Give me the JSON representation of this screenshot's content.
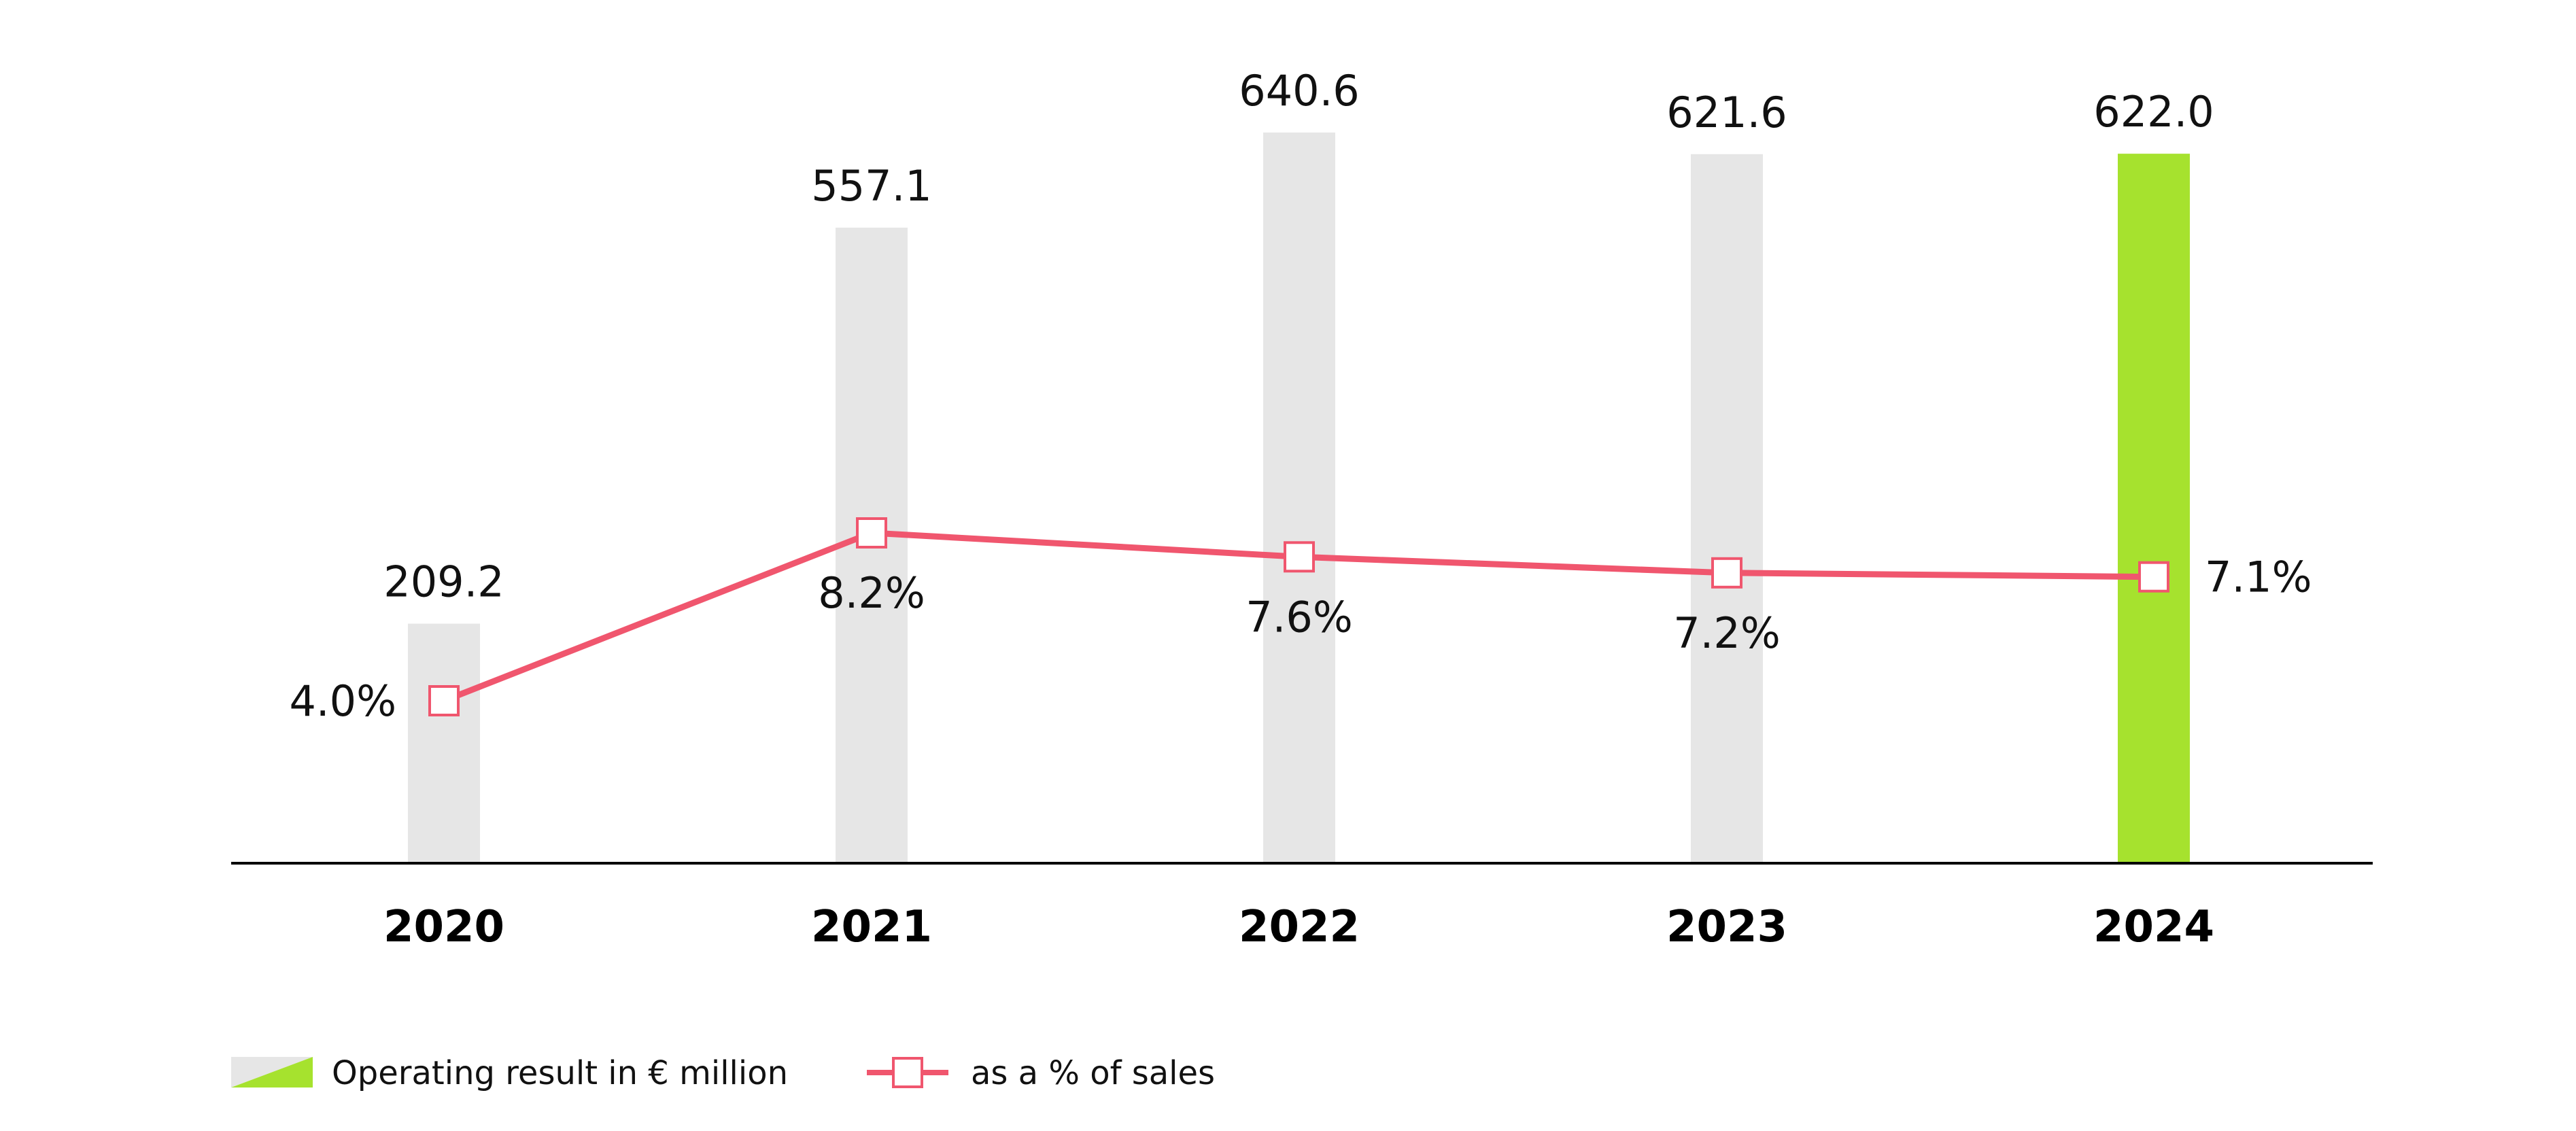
{
  "chart_data": {
    "type": "bar",
    "categories": [
      "2020",
      "2021",
      "2022",
      "2023",
      "2024"
    ],
    "series": [
      {
        "name": "Operating result in € million",
        "type": "bar",
        "values": [
          209.2,
          557.1,
          640.6,
          621.6,
          622.0
        ],
        "labels": [
          "209.2",
          "557.1",
          "640.6",
          "621.6",
          "622.0"
        ]
      },
      {
        "name": "as a % of sales",
        "type": "line",
        "values": [
          4.0,
          8.2,
          7.6,
          7.2,
          7.1
        ],
        "labels": [
          "4.0%",
          "8.2%",
          "7.6%",
          "7.2%",
          "7.1%"
        ]
      }
    ],
    "highlight_index": 4,
    "colors": {
      "bar": "#e6e6e6",
      "bar_highlight": "#a6e22e",
      "line": "#f0566e",
      "axis": "#000000"
    },
    "legend_position": "bottom-left",
    "grid": false
  }
}
